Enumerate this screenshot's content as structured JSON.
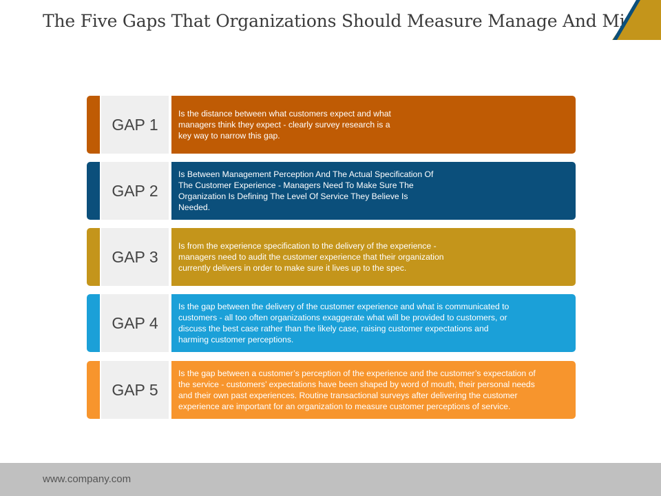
{
  "title": "The Five Gaps That Organizations Should Measure Manage And Minimize",
  "colors": {
    "gap1": "#bf5b04",
    "gap2": "#0b4f7b",
    "gap3": "#c4951b",
    "gap4": "#1ba0d8",
    "gap5": "#f7952d"
  },
  "gaps": [
    {
      "label": "GAP 1",
      "lines": [
        "Is the distance between what customers expect and what",
        "managers think they expect - clearly survey research is a",
        "key way to narrow this gap."
      ]
    },
    {
      "label": "GAP 2",
      "lines": [
        "Is Between Management Perception And The Actual Specification Of",
        "The Customer Experience - Managers Need To Make Sure The",
        "Organization Is Defining The Level Of Service They Believe Is",
        "Needed."
      ]
    },
    {
      "label": "GAP 3",
      "lines": [
        "Is from the experience specification to the delivery of the experience -",
        "managers need to audit the customer experience that their organization",
        "currently delivers in order to make sure it lives up to the spec."
      ]
    },
    {
      "label": "GAP 4",
      "lines": [
        "Is the gap between the delivery of the customer experience and what is communicated to",
        "customers - all too often organizations exaggerate what will be provided to customers, or",
        "discuss the best case rather than the likely case, raising customer expectations and",
        "harming customer perceptions."
      ]
    },
    {
      "label": "GAP 5",
      "lines": [
        "Is the gap between a customer’s perception of the experience and the customer’s expectation of",
        "the service - customers’ expectations have been shaped by word of mouth, their personal needs",
        "and their own past experiences. Routine transactional surveys after delivering the customer",
        "experience are important for an organization to measure customer perceptions of service."
      ]
    }
  ],
  "footer": {
    "website": "www.company.com"
  }
}
